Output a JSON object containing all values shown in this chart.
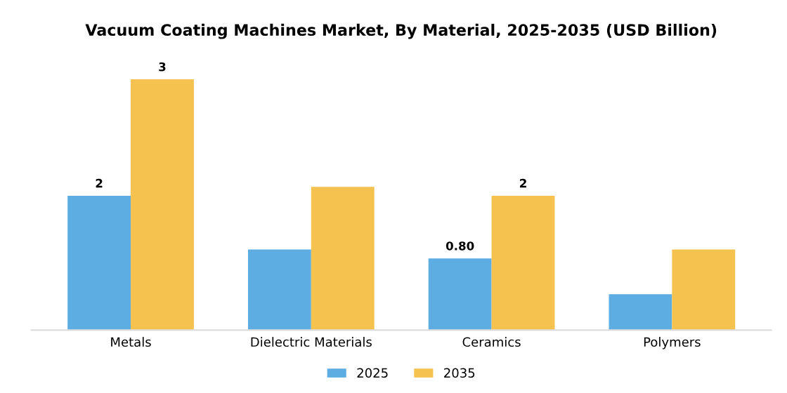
{
  "chart_data": {
    "type": "bar",
    "title": "Vacuum Coating Machines Market, By Material, 2025-2035 (USD Billion)",
    "categories": [
      "Metals",
      "Dielectric Materials",
      "Ceramics",
      "Polymers"
    ],
    "legend": "bottom",
    "grid": false,
    "series": [
      {
        "name": "2025",
        "color": "#5dade2",
        "values": [
          1.5,
          0.9,
          0.8,
          0.4
        ],
        "value_labels": [
          "2",
          null,
          "0.80",
          null
        ]
      },
      {
        "name": "2035",
        "color": "#f5c14f",
        "values": [
          2.8,
          1.6,
          1.5,
          0.9
        ],
        "value_labels": [
          "3",
          null,
          "2",
          null
        ]
      }
    ]
  }
}
